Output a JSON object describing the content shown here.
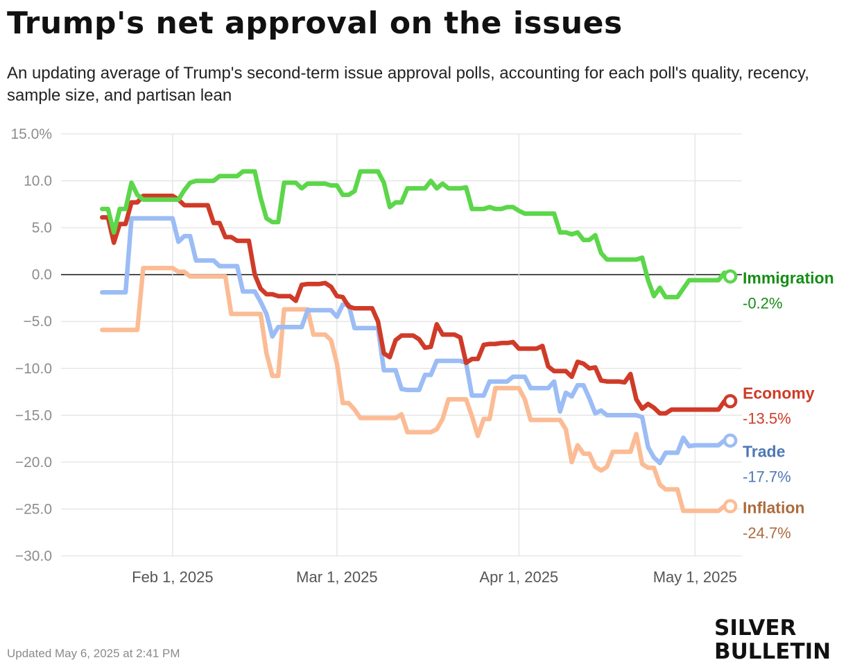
{
  "title": "Trump's net approval on the issues",
  "subtitle": "An updating average of Trump's second-term issue approval polls, accounting for each poll's quality, recency, sample size, and partisan lean",
  "footer": {
    "updated": "Updated May 6, 2025 at 2:41 PM",
    "logo_line1": "SILVER",
    "logo_line2": "BULLETIN"
  },
  "chart_data": {
    "type": "line",
    "title": "Trump's net approval on the issues",
    "xlabel": "",
    "ylabel": "",
    "ylim": [
      -30,
      15
    ],
    "yticks": [
      15,
      10,
      5,
      0,
      -5,
      -10,
      -15,
      -20,
      -25,
      -30
    ],
    "ytick_labels": [
      "15.0%",
      "10.0",
      "5.0",
      "0.0",
      "−5.0",
      "−10.0",
      "−15.0",
      "−20.0",
      "−25.0",
      "−30.0"
    ],
    "x_start": "2025-01-20",
    "x_range_days": [
      -7,
      109
    ],
    "xticks": [
      {
        "day": 12,
        "label": "Feb 1, 2025"
      },
      {
        "day": 40,
        "label": "Mar 1, 2025"
      },
      {
        "day": 71,
        "label": "Apr 1, 2025"
      },
      {
        "day": 101,
        "label": "May 1, 2025"
      }
    ],
    "grid": true,
    "legend": "end-of-line labels",
    "series": [
      {
        "name": "Immigration",
        "final_label": "-0.2%",
        "color": "#5cd64a",
        "label_color": "#168d16",
        "x": [
          0,
          1,
          2,
          3,
          4,
          5,
          6,
          7,
          8,
          9,
          10,
          11,
          12,
          13,
          14,
          15,
          16,
          17,
          18,
          19,
          20,
          21,
          22,
          23,
          24,
          25,
          26,
          27,
          28,
          29,
          30,
          31,
          32,
          33,
          34,
          35,
          36,
          37,
          38,
          39,
          40,
          41,
          42,
          43,
          44,
          45,
          46,
          47,
          48,
          49,
          50,
          51,
          52,
          53,
          54,
          55,
          56,
          57,
          58,
          59,
          60,
          61,
          62,
          63,
          64,
          65,
          66,
          67,
          68,
          69,
          70,
          71,
          72,
          73,
          74,
          75,
          76,
          77,
          78,
          79,
          80,
          81,
          82,
          83,
          84,
          85,
          86,
          87,
          88,
          89,
          90,
          91,
          92,
          93,
          94,
          95,
          96,
          97,
          98,
          99,
          100,
          101,
          102,
          103,
          104,
          105,
          106,
          107
        ],
        "values": [
          7.0,
          7.0,
          4.5,
          7.0,
          7.0,
          9.8,
          8.5,
          8.0,
          8.0,
          8.0,
          8.0,
          8.0,
          8.0,
          8.0,
          9.0,
          9.8,
          10.0,
          10.0,
          10.0,
          10.0,
          10.5,
          10.5,
          10.5,
          10.5,
          11.0,
          11.0,
          11.0,
          8.2,
          6.0,
          5.6,
          5.6,
          9.8,
          9.8,
          9.8,
          9.2,
          9.7,
          9.7,
          9.7,
          9.7,
          9.5,
          9.5,
          8.5,
          8.5,
          8.9,
          11.0,
          11.0,
          11.0,
          11.0,
          9.8,
          7.2,
          7.7,
          7.7,
          9.2,
          9.2,
          9.2,
          9.2,
          10.0,
          9.2,
          9.7,
          9.2,
          9.2,
          9.2,
          9.3,
          7.0,
          7.0,
          7.0,
          7.2,
          7.0,
          7.0,
          7.2,
          7.2,
          6.8,
          6.5,
          6.5,
          6.5,
          6.5,
          6.5,
          6.5,
          4.5,
          4.5,
          4.3,
          4.5,
          3.7,
          3.7,
          4.2,
          2.3,
          1.6,
          1.6,
          1.6,
          1.6,
          1.6,
          1.6,
          1.8,
          -0.6,
          -2.3,
          -1.4,
          -2.4,
          -2.4,
          -2.4,
          -1.5,
          -0.6,
          -0.6,
          -0.6,
          -0.6,
          -0.6,
          -0.6,
          0.2,
          -0.2
        ]
      },
      {
        "name": "Economy",
        "final_label": "-13.5%",
        "color": "#cf3b28",
        "label_color": "#cf3b28",
        "x": [
          0,
          1,
          2,
          3,
          4,
          5,
          6,
          7,
          8,
          9,
          10,
          11,
          12,
          13,
          14,
          15,
          16,
          17,
          18,
          19,
          20,
          21,
          22,
          23,
          24,
          25,
          26,
          27,
          28,
          29,
          30,
          31,
          32,
          33,
          34,
          35,
          36,
          37,
          38,
          39,
          40,
          41,
          42,
          43,
          44,
          45,
          46,
          47,
          48,
          49,
          50,
          51,
          52,
          53,
          54,
          55,
          56,
          57,
          58,
          59,
          60,
          61,
          62,
          63,
          64,
          65,
          66,
          67,
          68,
          69,
          70,
          71,
          72,
          73,
          74,
          75,
          76,
          77,
          78,
          79,
          80,
          81,
          82,
          83,
          84,
          85,
          86,
          87,
          88,
          89,
          90,
          91,
          92,
          93,
          94,
          95,
          96,
          97,
          98,
          99,
          100,
          101,
          102,
          103,
          104,
          105,
          106,
          107
        ],
        "values": [
          6.1,
          6.1,
          3.4,
          5.4,
          5.4,
          7.7,
          7.7,
          8.4,
          8.4,
          8.4,
          8.4,
          8.4,
          8.4,
          8.0,
          7.4,
          7.4,
          7.4,
          7.4,
          7.4,
          5.5,
          5.5,
          4.0,
          4.0,
          3.6,
          3.6,
          3.6,
          0.0,
          -1.5,
          -2.1,
          -2.1,
          -2.3,
          -2.3,
          -2.3,
          -2.8,
          -1.1,
          -1.0,
          -1.0,
          -1.0,
          -0.9,
          -1.3,
          -2.3,
          -2.4,
          -3.4,
          -3.6,
          -3.6,
          -3.6,
          -3.6,
          -5.0,
          -8.4,
          -8.8,
          -7.0,
          -6.5,
          -6.5,
          -6.5,
          -6.9,
          -7.8,
          -7.7,
          -5.3,
          -6.4,
          -6.4,
          -6.4,
          -6.7,
          -9.4,
          -9.0,
          -9.0,
          -7.5,
          -7.4,
          -7.4,
          -7.3,
          -7.3,
          -7.2,
          -7.9,
          -7.9,
          -7.9,
          -7.9,
          -7.6,
          -9.8,
          -10.3,
          -10.3,
          -10.3,
          -10.9,
          -9.3,
          -9.5,
          -10.0,
          -9.9,
          -11.3,
          -11.4,
          -11.4,
          -11.4,
          -11.5,
          -10.6,
          -13.3,
          -14.3,
          -13.8,
          -14.2,
          -14.8,
          -14.8,
          -14.4,
          -14.4,
          -14.4,
          -14.4,
          -14.4,
          -14.4,
          -14.4,
          -14.4,
          -14.4,
          -13.5,
          -13.5
        ]
      },
      {
        "name": "Trade",
        "final_label": "-17.7%",
        "color": "#9bbcf5",
        "label_color": "#4e78b4",
        "x": [
          0,
          1,
          2,
          3,
          4,
          5,
          6,
          7,
          8,
          9,
          10,
          11,
          12,
          13,
          14,
          15,
          16,
          17,
          18,
          19,
          20,
          21,
          22,
          23,
          24,
          25,
          26,
          27,
          28,
          29,
          30,
          31,
          32,
          33,
          34,
          35,
          36,
          37,
          38,
          39,
          40,
          41,
          42,
          43,
          44,
          45,
          46,
          47,
          48,
          49,
          50,
          51,
          52,
          53,
          54,
          55,
          56,
          57,
          58,
          59,
          60,
          61,
          62,
          63,
          64,
          65,
          66,
          67,
          68,
          69,
          70,
          71,
          72,
          73,
          74,
          75,
          76,
          77,
          78,
          79,
          80,
          81,
          82,
          83,
          84,
          85,
          86,
          87,
          88,
          89,
          90,
          91,
          92,
          93,
          94,
          95,
          96,
          97,
          98,
          99,
          100,
          101,
          102,
          103,
          104,
          105,
          106,
          107
        ],
        "values": [
          -1.9,
          -1.9,
          -1.9,
          -1.9,
          -1.9,
          6.0,
          6.0,
          6.0,
          6.0,
          6.0,
          6.0,
          6.0,
          6.0,
          3.5,
          4.1,
          4.1,
          1.5,
          1.5,
          1.5,
          1.5,
          0.9,
          0.9,
          0.9,
          0.9,
          -1.8,
          -1.8,
          -1.8,
          -2.9,
          -4.2,
          -6.6,
          -5.6,
          -5.6,
          -5.6,
          -5.6,
          -5.6,
          -3.8,
          -3.8,
          -3.8,
          -3.8,
          -3.8,
          -4.5,
          -3.2,
          -3.2,
          -5.7,
          -5.7,
          -5.7,
          -5.7,
          -5.7,
          -10.2,
          -10.2,
          -10.2,
          -12.2,
          -12.3,
          -12.3,
          -12.3,
          -10.7,
          -10.7,
          -9.2,
          -9.2,
          -9.2,
          -9.2,
          -9.2,
          -9.4,
          -12.9,
          -12.9,
          -12.9,
          -11.4,
          -11.4,
          -11.4,
          -11.4,
          -10.9,
          -10.9,
          -10.9,
          -12.1,
          -12.1,
          -12.1,
          -12.1,
          -11.4,
          -14.6,
          -12.6,
          -13.0,
          -11.8,
          -11.8,
          -13.2,
          -14.8,
          -14.5,
          -15.0,
          -15.0,
          -15.0,
          -15.0,
          -15.0,
          -15.0,
          -15.2,
          -18.4,
          -19.5,
          -20.1,
          -19.0,
          -19.0,
          -19.0,
          -17.4,
          -18.3,
          -18.2,
          -18.2,
          -18.2,
          -18.2,
          -18.2,
          -17.7,
          -17.7
        ]
      },
      {
        "name": "Inflation",
        "final_label": "-24.7%",
        "color": "#fbbc95",
        "label_color": "#ad6b3e",
        "x": [
          0,
          1,
          2,
          3,
          4,
          5,
          6,
          7,
          8,
          9,
          10,
          11,
          12,
          13,
          14,
          15,
          16,
          17,
          18,
          19,
          20,
          21,
          22,
          23,
          24,
          25,
          26,
          27,
          28,
          29,
          30,
          31,
          32,
          33,
          34,
          35,
          36,
          37,
          38,
          39,
          40,
          41,
          42,
          43,
          44,
          45,
          46,
          47,
          48,
          49,
          50,
          51,
          52,
          53,
          54,
          55,
          56,
          57,
          58,
          59,
          60,
          61,
          62,
          63,
          64,
          65,
          66,
          67,
          68,
          69,
          70,
          71,
          72,
          73,
          74,
          75,
          76,
          77,
          78,
          79,
          80,
          81,
          82,
          83,
          84,
          85,
          86,
          87,
          88,
          89,
          90,
          91,
          92,
          93,
          94,
          95,
          96,
          97,
          98,
          99,
          100,
          101,
          102,
          103,
          104,
          105,
          106,
          107
        ],
        "values": [
          -5.9,
          -5.9,
          -5.9,
          -5.9,
          -5.9,
          -5.9,
          -5.9,
          0.7,
          0.7,
          0.7,
          0.7,
          0.7,
          0.7,
          0.3,
          0.3,
          -0.2,
          -0.2,
          -0.2,
          -0.2,
          -0.2,
          -0.2,
          -0.2,
          -4.2,
          -4.2,
          -4.2,
          -4.2,
          -4.2,
          -4.2,
          -8.4,
          -10.8,
          -10.8,
          -3.7,
          -3.7,
          -3.7,
          -3.7,
          -3.7,
          -6.4,
          -6.4,
          -6.4,
          -7.0,
          -9.5,
          -13.7,
          -13.7,
          -14.4,
          -15.3,
          -15.3,
          -15.3,
          -15.3,
          -15.3,
          -15.3,
          -15.3,
          -14.9,
          -16.8,
          -16.8,
          -16.8,
          -16.8,
          -16.8,
          -16.5,
          -15.4,
          -13.3,
          -13.3,
          -13.3,
          -13.3,
          -15.1,
          -17.2,
          -15.4,
          -15.4,
          -12.1,
          -12.1,
          -12.1,
          -12.1,
          -12.1,
          -13.3,
          -15.5,
          -15.5,
          -15.5,
          -15.5,
          -15.5,
          -15.5,
          -16.5,
          -20.0,
          -18.2,
          -19.1,
          -19.1,
          -20.5,
          -20.9,
          -20.5,
          -18.9,
          -18.9,
          -18.9,
          -18.9,
          -17.0,
          -20.2,
          -20.6,
          -20.6,
          -22.4,
          -22.9,
          -22.9,
          -22.9,
          -25.2,
          -25.2,
          -25.2,
          -25.2,
          -25.2,
          -25.2,
          -25.2,
          -24.7,
          -24.7
        ]
      }
    ]
  }
}
